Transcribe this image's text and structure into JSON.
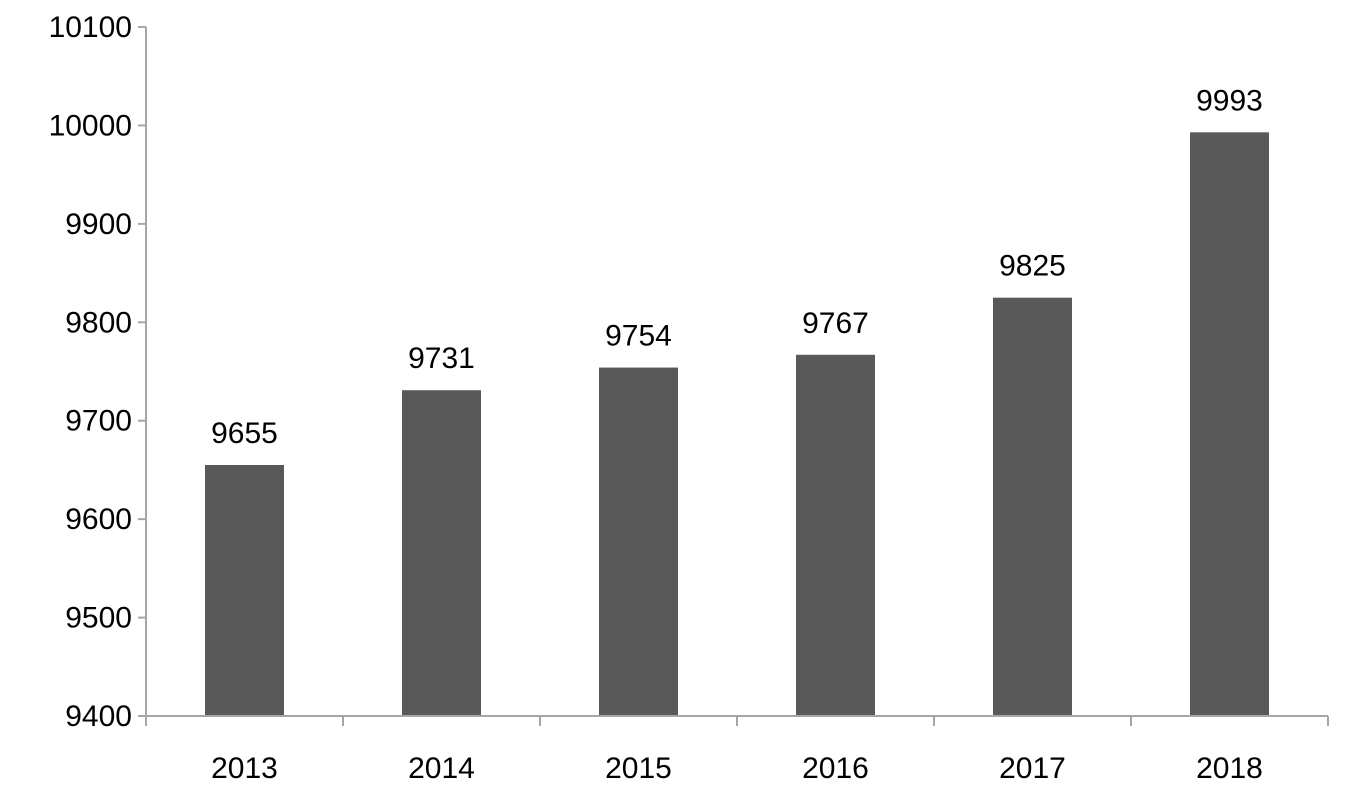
{
  "chart_data": {
    "type": "bar",
    "categories": [
      "2013",
      "2014",
      "2015",
      "2016",
      "2017",
      "2018"
    ],
    "series": [
      {
        "values": [
          9655,
          9731,
          9754,
          9767,
          9825,
          9993
        ],
        "color": "#595959"
      }
    ],
    "data_labels": [
      "9655",
      "9731",
      "9754",
      "9767",
      "9825",
      "9993"
    ],
    "y_ticks": [
      "9400",
      "9500",
      "9600",
      "9700",
      "9800",
      "9900",
      "10000",
      "10100"
    ],
    "ylim": [
      9400,
      10100
    ],
    "title": "",
    "xlabel": "",
    "ylabel": "",
    "grid": false,
    "legend": "none",
    "axis_color": "#a6a6a6"
  }
}
